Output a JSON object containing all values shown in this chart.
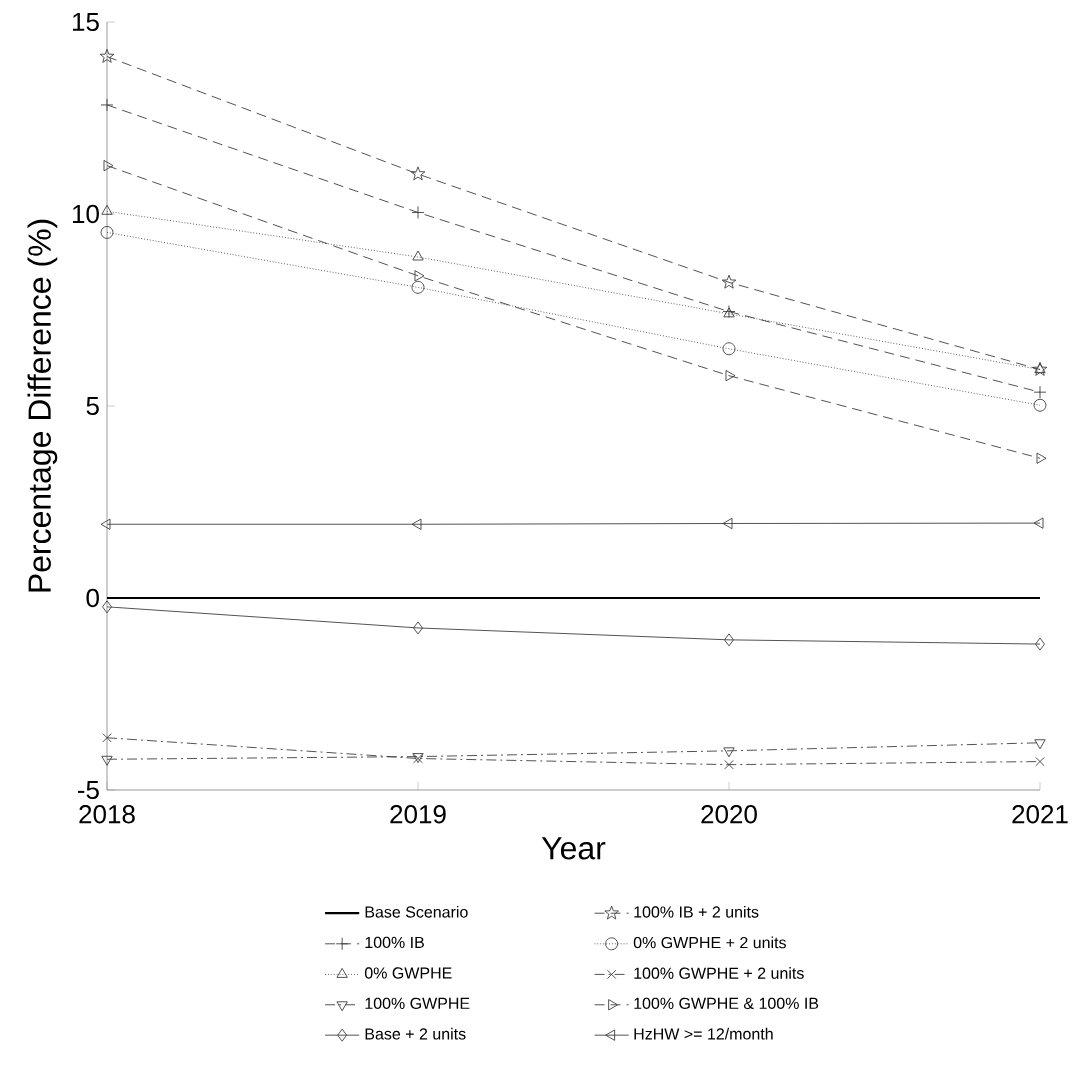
{
  "chart_data": {
    "type": "line",
    "xlabel": "Year",
    "ylabel": "Percentage Difference (%)",
    "x": [
      2018,
      2019,
      2020,
      2021
    ],
    "xlim": [
      2018,
      2021
    ],
    "xticks": [
      2018,
      2019,
      2020,
      2021
    ],
    "ylim": [
      -5,
      15
    ],
    "yticks": [
      -5,
      0,
      5,
      10,
      15
    ],
    "legend": "bottom",
    "series": [
      {
        "name": "Base Scenario",
        "color": "#000000",
        "marker": "none",
        "line_style": "solid",
        "values": [
          0,
          0,
          0,
          0
        ]
      },
      {
        "name": "100% IB + 2 units",
        "color": "#404040",
        "marker": "star",
        "line_style": "dashed",
        "values": [
          14.1,
          11.04,
          8.22,
          5.95
        ]
      },
      {
        "name": "100% IB",
        "color": "#404040",
        "marker": "plus",
        "line_style": "dashed",
        "values": [
          12.84,
          10.04,
          7.46,
          5.36
        ]
      },
      {
        "name": "0% GWPHE + 2 units",
        "color": "#404040",
        "marker": "circle",
        "line_style": "dotted",
        "values": [
          9.52,
          8.09,
          6.49,
          5.02
        ]
      },
      {
        "name": "0% GWPHE",
        "color": "#404040",
        "marker": "triangle",
        "line_style": "dotted",
        "values": [
          10.07,
          8.88,
          7.4,
          5.95
        ]
      },
      {
        "name": "100% GWPHE + 2 units",
        "color": "#404040",
        "marker": "cross",
        "line_style": "dashdot",
        "values": [
          -3.64,
          -4.18,
          -4.34,
          -4.26
        ]
      },
      {
        "name": "100% GWPHE",
        "color": "#404040",
        "marker": "triangle-down",
        "line_style": "dashdot",
        "values": [
          -4.2,
          -4.13,
          -3.98,
          -3.77
        ]
      },
      {
        "name": "100% GWPHE & 100% IB",
        "color": "#404040",
        "marker": "triangle-right",
        "line_style": "dashed",
        "values": [
          11.26,
          8.39,
          5.79,
          3.64
        ]
      },
      {
        "name": "Base + 2 units",
        "color": "#404040",
        "marker": "diamond",
        "line_style": "solid",
        "values": [
          -0.23,
          -0.78,
          -1.09,
          -1.2
        ]
      },
      {
        "name": "HzHW >= 12/month",
        "color": "#404040",
        "marker": "triangle-left",
        "line_style": "solid",
        "values": [
          1.92,
          1.92,
          1.94,
          1.95
        ]
      }
    ]
  }
}
